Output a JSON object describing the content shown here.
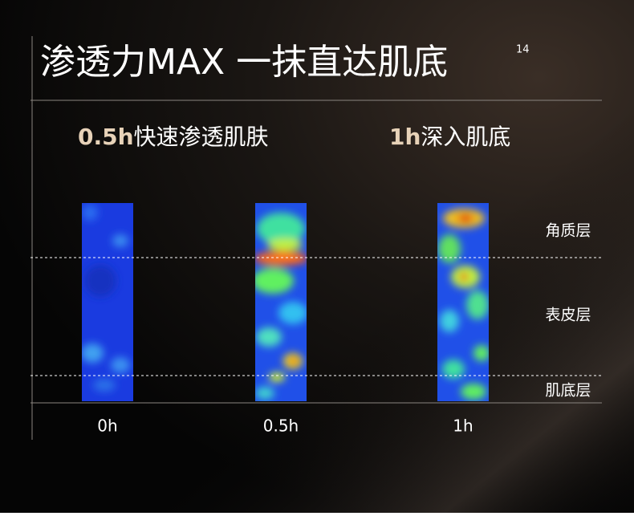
{
  "title": "渗透力MAX 一抹直达肌底",
  "title_note": "14",
  "headings": [
    {
      "time": "0.5h",
      "text": "快速渗透肌肤"
    },
    {
      "time": "1h",
      "text": "深入肌底"
    }
  ],
  "layers": [
    "角质层",
    "表皮层",
    "肌底层"
  ],
  "columns": [
    "0h",
    "0.5h",
    "1h"
  ]
}
